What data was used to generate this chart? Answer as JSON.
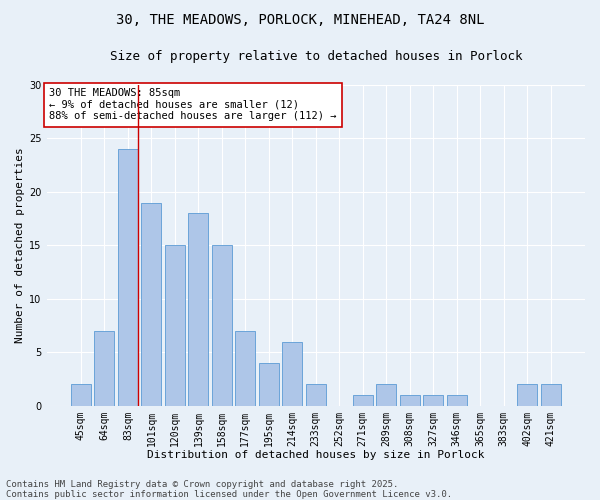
{
  "title_line1": "30, THE MEADOWS, PORLOCK, MINEHEAD, TA24 8NL",
  "title_line2": "Size of property relative to detached houses in Porlock",
  "xlabel": "Distribution of detached houses by size in Porlock",
  "ylabel": "Number of detached properties",
  "categories": [
    "45sqm",
    "64sqm",
    "83sqm",
    "101sqm",
    "120sqm",
    "139sqm",
    "158sqm",
    "177sqm",
    "195sqm",
    "214sqm",
    "233sqm",
    "252sqm",
    "271sqm",
    "289sqm",
    "308sqm",
    "327sqm",
    "346sqm",
    "365sqm",
    "383sqm",
    "402sqm",
    "421sqm"
  ],
  "values": [
    2,
    7,
    24,
    19,
    15,
    18,
    15,
    7,
    4,
    6,
    2,
    0,
    1,
    2,
    1,
    1,
    1,
    0,
    0,
    2,
    2
  ],
  "bar_color": "#aec6e8",
  "bar_edge_color": "#5b9bd5",
  "vline_index": 2,
  "vline_color": "#cc0000",
  "annotation_text": "30 THE MEADOWS: 85sqm\n← 9% of detached houses are smaller (12)\n88% of semi-detached houses are larger (112) →",
  "annotation_box_color": "#ffffff",
  "annotation_box_edge_color": "#cc0000",
  "ylim": [
    0,
    30
  ],
  "yticks": [
    0,
    5,
    10,
    15,
    20,
    25,
    30
  ],
  "background_color": "#e8f0f8",
  "grid_color": "#ffffff",
  "footer_text": "Contains HM Land Registry data © Crown copyright and database right 2025.\nContains public sector information licensed under the Open Government Licence v3.0.",
  "title_fontsize": 10,
  "subtitle_fontsize": 9,
  "axis_label_fontsize": 8,
  "tick_fontsize": 7,
  "annotation_fontsize": 7.5,
  "footer_fontsize": 6.5
}
